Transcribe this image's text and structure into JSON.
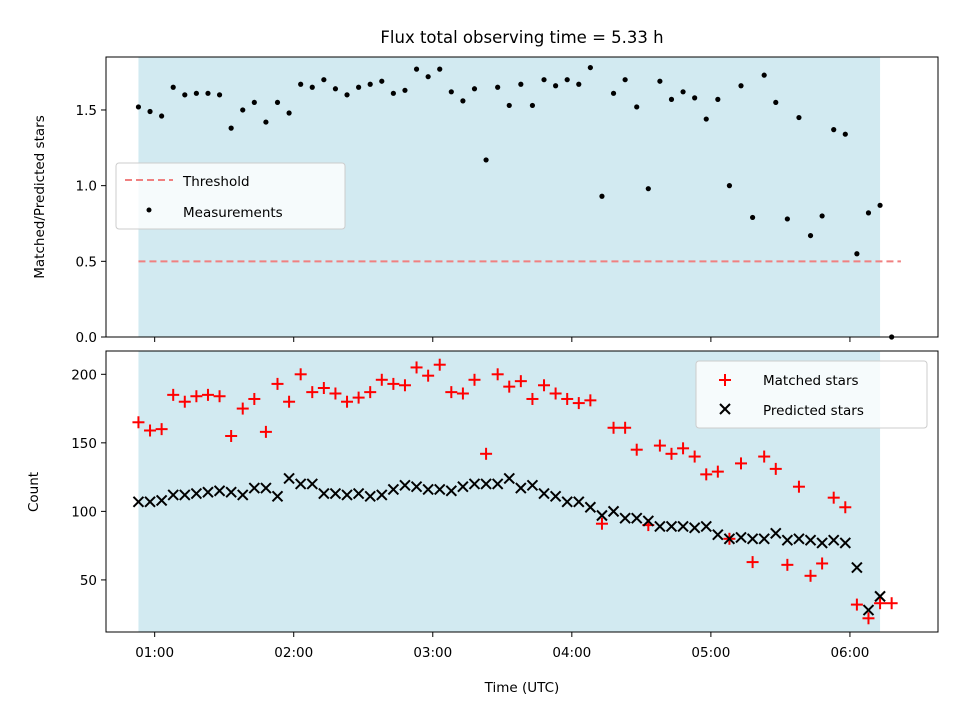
{
  "chart_data": [
    {
      "type": "scatter",
      "title": "Flux total observing time = 5.33 h",
      "ylabel": "Matched/Predicted stars",
      "xlim": [
        "00:39",
        "06:38"
      ],
      "ylim": [
        0,
        1.85
      ],
      "yticks": [
        0.0,
        0.5,
        1.0,
        1.5
      ],
      "ytick_labels": [
        "0.0",
        "0.5",
        "1.0",
        "1.5"
      ],
      "observing_window": [
        "00:53",
        "06:13"
      ],
      "observing_window_color": "#add8e6",
      "threshold": {
        "name": "Threshold",
        "value": 0.5,
        "x_range": [
          "00:53",
          "06:22"
        ],
        "color": "#f08080"
      },
      "series": [
        {
          "name": "Measurements",
          "color": "#000000",
          "x": [
            "00:53",
            "00:58",
            "01:03",
            "01:08",
            "01:13",
            "01:18",
            "01:23",
            "01:28",
            "01:33",
            "01:38",
            "01:43",
            "01:48",
            "01:53",
            "01:58",
            "02:03",
            "02:08",
            "02:13",
            "02:18",
            "02:23",
            "02:28",
            "02:33",
            "02:38",
            "02:43",
            "02:48",
            "02:53",
            "02:58",
            "03:03",
            "03:08",
            "03:13",
            "03:18",
            "03:23",
            "03:28",
            "03:33",
            "03:38",
            "03:43",
            "03:48",
            "03:53",
            "03:58",
            "04:03",
            "04:08",
            "04:13",
            "04:18",
            "04:23",
            "04:28",
            "04:33",
            "04:38",
            "04:43",
            "04:48",
            "04:53",
            "04:58",
            "05:03",
            "05:08",
            "05:13",
            "05:18",
            "05:23",
            "05:28",
            "05:33",
            "05:38",
            "05:43",
            "05:48",
            "05:53",
            "05:58",
            "06:03",
            "06:08",
            "06:13",
            "06:18"
          ],
          "values": [
            1.52,
            1.49,
            1.46,
            1.65,
            1.6,
            1.61,
            1.61,
            1.6,
            1.38,
            1.5,
            1.55,
            1.42,
            1.55,
            1.48,
            1.67,
            1.65,
            1.7,
            1.64,
            1.6,
            1.65,
            1.67,
            1.69,
            1.61,
            1.63,
            1.77,
            1.72,
            1.77,
            1.62,
            1.56,
            1.64,
            1.17,
            1.65,
            1.53,
            1.67,
            1.53,
            1.7,
            1.66,
            1.7,
            1.67,
            1.78,
            0.93,
            1.61,
            1.7,
            1.52,
            0.98,
            1.69,
            1.57,
            1.62,
            1.58,
            1.44,
            1.57,
            1.0,
            1.66,
            0.79,
            1.73,
            1.55,
            0.78,
            1.45,
            0.67,
            0.8,
            1.37,
            1.34,
            0.55,
            0.82,
            0.87,
            0.0
          ]
        }
      ],
      "legend": {
        "position": "center-left",
        "entries": [
          "Threshold",
          "Measurements"
        ]
      }
    },
    {
      "type": "scatter",
      "xlabel": "Time (UTC)",
      "ylabel": "Count",
      "xlim": [
        "00:39",
        "06:38"
      ],
      "ylim": [
        12,
        217
      ],
      "yticks": [
        50,
        100,
        150,
        200
      ],
      "ytick_labels": [
        "50",
        "100",
        "150",
        "200"
      ],
      "xticks": [
        "01:00",
        "02:00",
        "03:00",
        "04:00",
        "05:00",
        "06:00"
      ],
      "observing_window": [
        "00:53",
        "06:13"
      ],
      "series": [
        {
          "name": "Matched stars",
          "marker": "+",
          "color": "#ff0000",
          "x": [
            "00:53",
            "00:58",
            "01:03",
            "01:08",
            "01:13",
            "01:18",
            "01:23",
            "01:28",
            "01:33",
            "01:38",
            "01:43",
            "01:48",
            "01:53",
            "01:58",
            "02:03",
            "02:08",
            "02:13",
            "02:18",
            "02:23",
            "02:28",
            "02:33",
            "02:38",
            "02:43",
            "02:48",
            "02:53",
            "02:58",
            "03:03",
            "03:08",
            "03:13",
            "03:18",
            "03:23",
            "03:28",
            "03:33",
            "03:38",
            "03:43",
            "03:48",
            "03:53",
            "03:58",
            "04:03",
            "04:08",
            "04:13",
            "04:18",
            "04:23",
            "04:28",
            "04:33",
            "04:38",
            "04:43",
            "04:48",
            "04:53",
            "04:58",
            "05:03",
            "05:08",
            "05:13",
            "05:18",
            "05:23",
            "05:28",
            "05:33",
            "05:38",
            "05:43",
            "05:48",
            "05:53",
            "05:58",
            "06:03",
            "06:08",
            "06:13",
            "06:18"
          ],
          "values": [
            165,
            159,
            160,
            185,
            180,
            184,
            185,
            184,
            155,
            175,
            182,
            158,
            193,
            180,
            200,
            187,
            190,
            186,
            180,
            183,
            187,
            196,
            193,
            192,
            205,
            199,
            207,
            187,
            186,
            196,
            142,
            200,
            191,
            195,
            182,
            192,
            186,
            182,
            179,
            181,
            91,
            161,
            161,
            145,
            90,
            148,
            142,
            146,
            140,
            127,
            129,
            80,
            135,
            63,
            140,
            131,
            61,
            118,
            53,
            62,
            110,
            103,
            32,
            22,
            33,
            33
          ]
        },
        {
          "name": "Predicted stars",
          "marker": "x",
          "color": "#000000",
          "x": [
            "00:53",
            "00:58",
            "01:03",
            "01:08",
            "01:13",
            "01:18",
            "01:23",
            "01:28",
            "01:33",
            "01:38",
            "01:43",
            "01:48",
            "01:53",
            "01:58",
            "02:03",
            "02:08",
            "02:13",
            "02:18",
            "02:23",
            "02:28",
            "02:33",
            "02:38",
            "02:43",
            "02:48",
            "02:53",
            "02:58",
            "03:03",
            "03:08",
            "03:13",
            "03:18",
            "03:23",
            "03:28",
            "03:33",
            "03:38",
            "03:43",
            "03:48",
            "03:53",
            "03:58",
            "04:03",
            "04:08",
            "04:13",
            "04:18",
            "04:23",
            "04:28",
            "04:33",
            "04:38",
            "04:43",
            "04:48",
            "04:53",
            "04:58",
            "05:03",
            "05:08",
            "05:13",
            "05:18",
            "05:23",
            "05:28",
            "05:33",
            "05:38",
            "05:43",
            "05:48",
            "05:53",
            "05:58",
            "06:03",
            "06:08",
            "06:13"
          ],
          "values": [
            107,
            107,
            108,
            112,
            112,
            113,
            114,
            115,
            114,
            112,
            117,
            117,
            111,
            124,
            120,
            120,
            113,
            113,
            112,
            113,
            111,
            112,
            116,
            119,
            118,
            116,
            116,
            115,
            118,
            120,
            120,
            120,
            124,
            117,
            119,
            113,
            111,
            107,
            107,
            103,
            97,
            100,
            95,
            95,
            93,
            89,
            89,
            89,
            88,
            89,
            83,
            80,
            81,
            80,
            80,
            84,
            79,
            80,
            79,
            77,
            79,
            77,
            59,
            28,
            38
          ]
        }
      ],
      "legend": {
        "position": "upper-right",
        "entries": [
          "Matched stars",
          "Predicted stars"
        ]
      }
    }
  ]
}
